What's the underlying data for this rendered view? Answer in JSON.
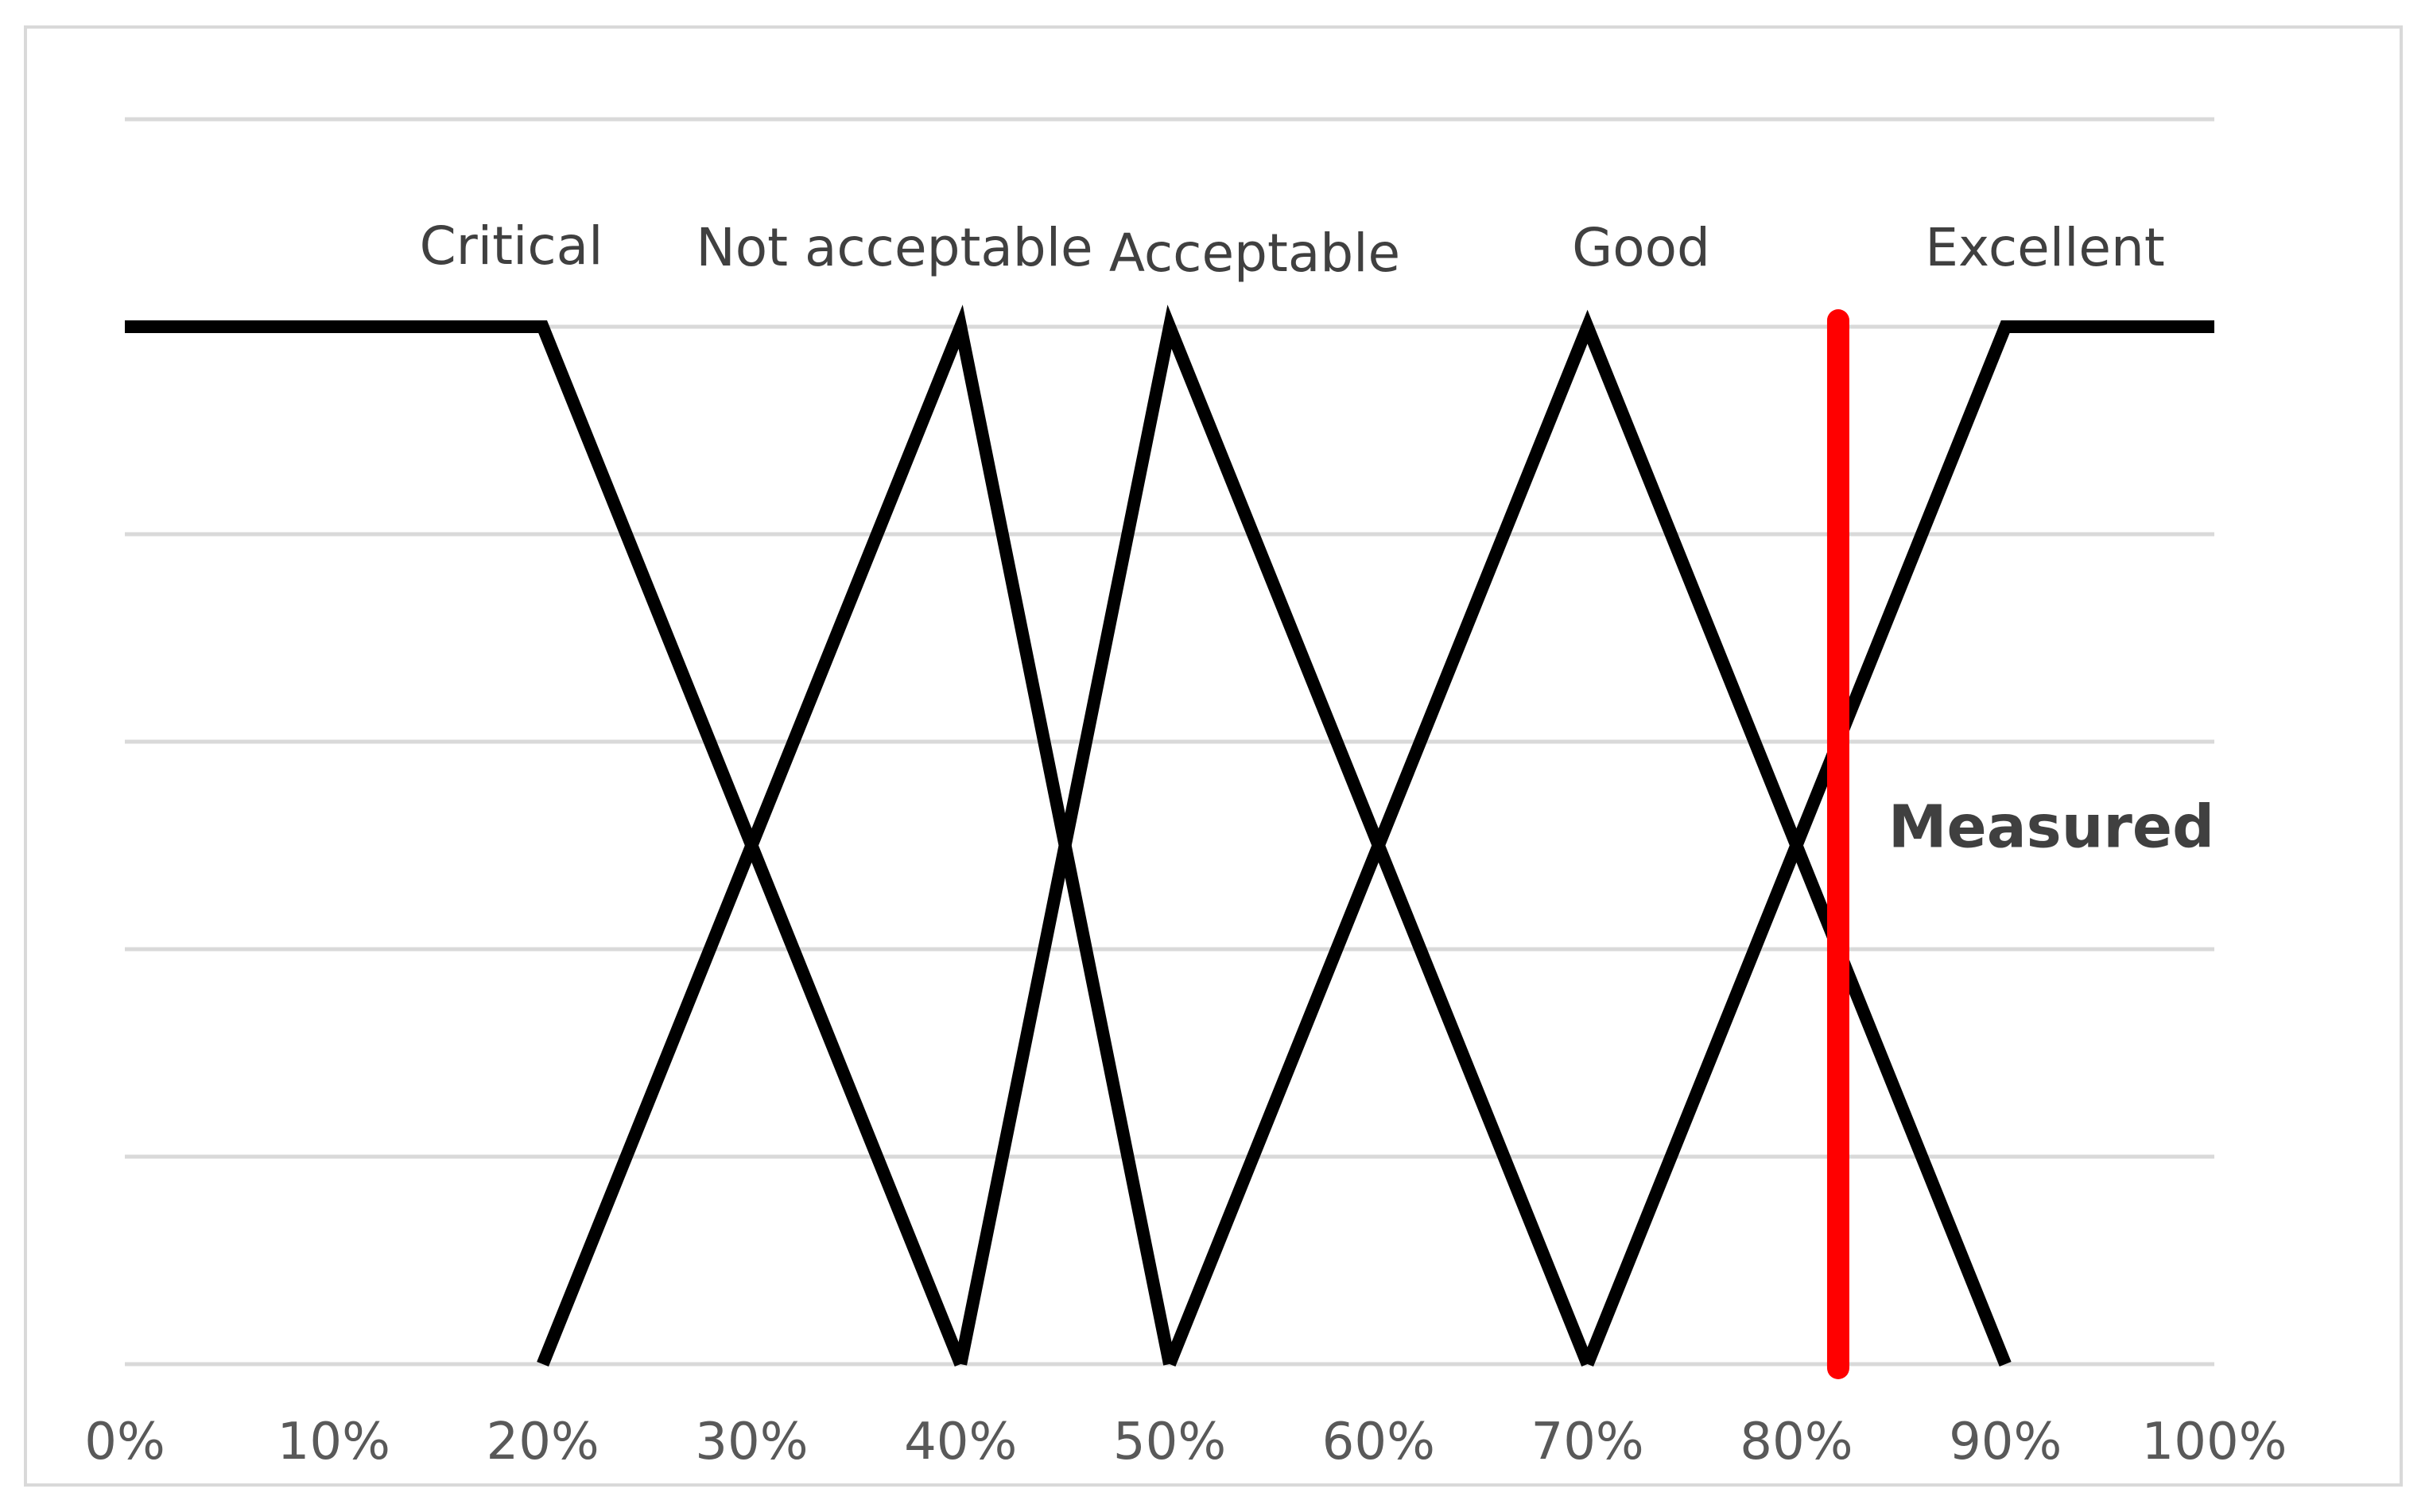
{
  "chart_data": {
    "type": "line",
    "title": "",
    "xlabel": "",
    "ylabel": "",
    "xlim": [
      0,
      100
    ],
    "ylim": [
      0,
      1
    ],
    "y_gridlines": [
      0,
      0.2,
      0.4,
      0.6,
      0.8,
      1.0,
      1.2
    ],
    "x_tick_labels": [
      "0%",
      "10%",
      "20%",
      "30%",
      "40%",
      "50%",
      "60%",
      "70%",
      "80%",
      "90%",
      "100%"
    ],
    "grid": true,
    "legend": "none",
    "series": [
      {
        "name": "Critical",
        "points": [
          [
            0,
            1
          ],
          [
            20,
            1
          ],
          [
            40,
            0
          ]
        ]
      },
      {
        "name": "Not acceptable",
        "points": [
          [
            20,
            0
          ],
          [
            40,
            1
          ],
          [
            50,
            0
          ]
        ]
      },
      {
        "name": "Acceptable",
        "points": [
          [
            40,
            0
          ],
          [
            50,
            1
          ],
          [
            70,
            0
          ]
        ]
      },
      {
        "name": "Good",
        "points": [
          [
            50,
            0
          ],
          [
            70,
            1
          ],
          [
            90,
            0
          ]
        ]
      },
      {
        "name": "Excellent",
        "points": [
          [
            70,
            0
          ],
          [
            90,
            1
          ],
          [
            100,
            1
          ]
        ]
      }
    ],
    "marker": {
      "label": "Measured",
      "x": 82,
      "color": "#ff0000"
    },
    "colors": {
      "series": "#000000",
      "grid": "#d9d9d9",
      "marker": "#ff0000"
    }
  }
}
